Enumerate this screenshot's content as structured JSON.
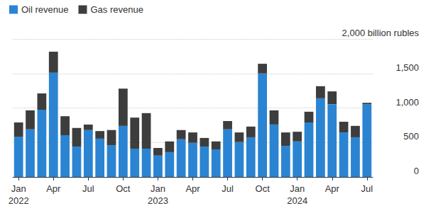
{
  "chart_data": {
    "type": "bar",
    "stacked": true,
    "grid": true,
    "legend": "top-left",
    "categories": [
      "Jan\n2022",
      null,
      null,
      "Apr",
      null,
      null,
      "Jul",
      null,
      null,
      "Oct",
      null,
      null,
      "Jan\n2023",
      null,
      null,
      "Apr",
      null,
      null,
      "Jul",
      null,
      null,
      "Oct",
      null,
      null,
      "Jan\n2024",
      null,
      null,
      "Apr",
      null,
      null,
      "Jul"
    ],
    "series": [
      {
        "name": "Oil revenue",
        "color": "#2a84d2",
        "values": [
          585,
          690,
          975,
          1510,
          605,
          440,
          680,
          555,
          460,
          740,
          410,
          410,
          310,
          360,
          545,
          495,
          440,
          400,
          690,
          505,
          575,
          1500,
          760,
          450,
          515,
          790,
          1140,
          1055,
          645,
          575,
          1055
        ]
      },
      {
        "name": "Gas revenue",
        "color": "#3d3d3d",
        "values": [
          205,
          275,
          235,
          305,
          275,
          270,
          80,
          110,
          220,
          540,
          450,
          515,
          110,
          155,
          135,
          150,
          125,
          115,
          120,
          140,
          155,
          140,
          205,
          195,
          140,
          155,
          175,
          185,
          155,
          165,
          20
        ]
      }
    ],
    "ylim": [
      0,
      2000
    ],
    "yticks": [
      0,
      500,
      {
        "value": 1000,
        "label": "1,000"
      },
      {
        "value": 1500,
        "label": "1,500"
      },
      {
        "value": 2000,
        "label": "2,000 billion rubles"
      }
    ]
  }
}
